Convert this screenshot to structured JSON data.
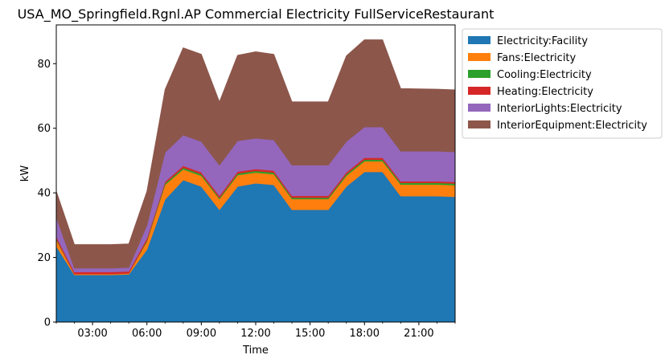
{
  "chart_data": {
    "type": "area",
    "stacked": true,
    "title": "USA_MO_Springfield.Rgnl.AP Commercial Electricity FullServiceRestaurant",
    "xlabel": "Time",
    "ylabel": "kW",
    "xlim": [
      1,
      23
    ],
    "ylim": [
      0,
      92
    ],
    "x": [
      1,
      2,
      3,
      4,
      5,
      6,
      7,
      8,
      9,
      10,
      11,
      12,
      13,
      14,
      15,
      16,
      17,
      18,
      19,
      20,
      21,
      22,
      23
    ],
    "x_ticks": [
      3,
      6,
      9,
      12,
      15,
      18,
      21
    ],
    "x_tick_labels": [
      "03:00",
      "06:00",
      "09:00",
      "12:00",
      "15:00",
      "18:00",
      "21:00"
    ],
    "y_ticks": [
      0,
      20,
      40,
      60,
      80
    ],
    "y_tick_labels": [
      "0",
      "20",
      "40",
      "60",
      "80"
    ],
    "grid": false,
    "legend_position": "outside-top-right",
    "series": [
      {
        "name": "Electricity:Facility",
        "color": "#1f77b4",
        "values": [
          23.5,
          14.6,
          14.6,
          14.6,
          14.8,
          22.5,
          38.0,
          44.0,
          42.0,
          34.8,
          42.0,
          43.0,
          42.5,
          34.8,
          34.8,
          34.8,
          42.0,
          46.5,
          46.5,
          39.0,
          39.0,
          39.0,
          38.8
        ]
      },
      {
        "name": "Fans:Electricity",
        "color": "#ff7f0e",
        "values": [
          2.0,
          0.3,
          0.3,
          0.3,
          0.3,
          2.5,
          4.5,
          3.3,
          3.3,
          3.3,
          3.5,
          3.3,
          3.3,
          3.3,
          3.3,
          3.3,
          3.3,
          3.3,
          3.3,
          3.6,
          3.6,
          3.6,
          3.6
        ]
      },
      {
        "name": "Cooling:Electricity",
        "color": "#2ca02c",
        "values": [
          0.3,
          0,
          0,
          0,
          0,
          0.3,
          0.5,
          0.5,
          0.5,
          0.4,
          0.5,
          0.5,
          0.5,
          0.4,
          0.4,
          0.4,
          0.5,
          0.5,
          0.5,
          0.5,
          0.5,
          0.5,
          0.5
        ]
      },
      {
        "name": "Heating:Electricity",
        "color": "#d62728",
        "values": [
          0.7,
          0.6,
          0.6,
          0.6,
          0.6,
          0.7,
          0.5,
          0.6,
          0.6,
          0.6,
          0.6,
          0.6,
          0.6,
          0.6,
          0.6,
          0.6,
          0.6,
          0.6,
          0.6,
          0.5,
          0.5,
          0.5,
          0.5
        ]
      },
      {
        "name": "InteriorLights:Electricity",
        "color": "#9467bd",
        "values": [
          6.0,
          1.2,
          1.2,
          1.2,
          1.2,
          4.0,
          9.0,
          9.5,
          9.5,
          9.5,
          9.5,
          9.5,
          9.5,
          9.5,
          9.5,
          9.5,
          9.5,
          9.5,
          9.5,
          9.3,
          9.3,
          9.3,
          9.3
        ]
      },
      {
        "name": "InteriorEquipment:Electricity",
        "color": "#8c564b",
        "values": [
          8.0,
          7.3,
          7.3,
          7.3,
          7.3,
          10.5,
          19.5,
          27.0,
          27.0,
          19.6,
          26.5,
          26.8,
          26.5,
          19.6,
          19.6,
          19.6,
          26.5,
          27.0,
          27.0,
          19.4,
          19.3,
          19.2,
          19.2
        ]
      }
    ]
  }
}
